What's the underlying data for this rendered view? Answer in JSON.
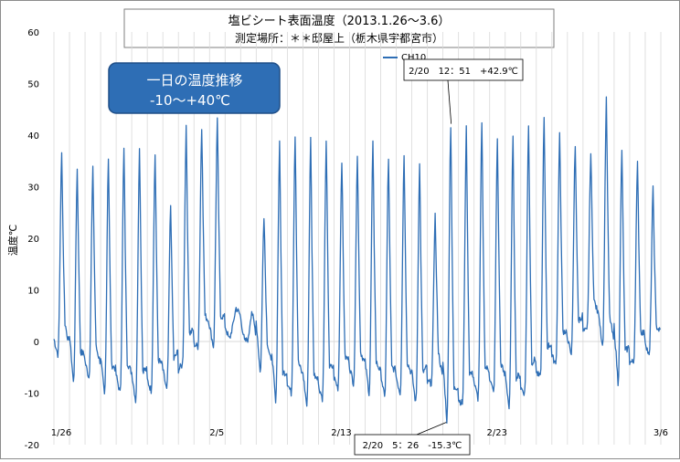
{
  "chart_data": {
    "type": "line",
    "title": "塩ビシート表面温度（2013.1.26～3.6）",
    "subtitle": "測定場所：＊＊邸屋上（栃木県宇都宮市）",
    "ylabel": "温度℃",
    "xlabel": "",
    "ylim": [
      -20,
      60
    ],
    "yticks": [
      "60",
      "50",
      "40",
      "30",
      "20",
      "10",
      "0",
      "-10",
      "-20"
    ],
    "xlim": [
      "2013-01-26",
      "2013-03-06"
    ],
    "xticks": [
      {
        "date": "2013-01-26",
        "label": "1/26"
      },
      {
        "date": "2013-02-05",
        "label": "2/5"
      },
      {
        "date": "2013-02-13",
        "label": "2/13"
      },
      {
        "date": "2013-02-23",
        "label": "2/23"
      },
      {
        "date": "2013-03-06",
        "label": "3/6"
      }
    ],
    "grid": "vertical",
    "legend_position": "top-center",
    "series": [
      {
        "name": "CH10",
        "color": "#2e6eb5",
        "daily": [
          {
            "date": "2013-01-26",
            "min": -2.5,
            "max": 37
          },
          {
            "date": "2013-01-27",
            "min": -8,
            "max": 34
          },
          {
            "date": "2013-01-28",
            "min": -7,
            "max": 34
          },
          {
            "date": "2013-01-29",
            "min": -10.5,
            "max": 36.5
          },
          {
            "date": "2013-01-30",
            "min": -10,
            "max": 38
          },
          {
            "date": "2013-01-31",
            "min": -11.5,
            "max": 38
          },
          {
            "date": "2013-02-01",
            "min": -9.5,
            "max": 37
          },
          {
            "date": "2013-02-02",
            "min": -9.5,
            "max": 27
          },
          {
            "date": "2013-02-03",
            "min": -4.5,
            "max": 42
          },
          {
            "date": "2013-02-04",
            "min": -1,
            "max": 42
          },
          {
            "date": "2013-02-05",
            "min": -1,
            "max": 43.5
          },
          {
            "date": "2013-02-06",
            "min": 0.5,
            "max": 3
          },
          {
            "date": "2013-02-07",
            "min": 0,
            "max": 0.5
          },
          {
            "date": "2013-02-08",
            "min": -6,
            "max": 25
          },
          {
            "date": "2013-02-09",
            "min": -12,
            "max": 39.5
          },
          {
            "date": "2013-02-10",
            "min": -10,
            "max": 41
          },
          {
            "date": "2013-02-11",
            "min": -12.5,
            "max": 40
          },
          {
            "date": "2013-02-12",
            "min": -11,
            "max": 39
          },
          {
            "date": "2013-02-13",
            "min": -9,
            "max": 36
          },
          {
            "date": "2013-02-14",
            "min": -8,
            "max": 37
          },
          {
            "date": "2013-02-15",
            "min": -10,
            "max": 39
          },
          {
            "date": "2013-02-16",
            "min": -11,
            "max": 36
          },
          {
            "date": "2013-02-17",
            "min": -10,
            "max": 37
          },
          {
            "date": "2013-02-18",
            "min": -12,
            "max": 35
          },
          {
            "date": "2013-02-19",
            "min": -8,
            "max": 25
          },
          {
            "date": "2013-02-20",
            "min": -15.3,
            "max": 42.9
          },
          {
            "date": "2013-02-21",
            "min": -12,
            "max": 42
          },
          {
            "date": "2013-02-22",
            "min": -11,
            "max": 43
          },
          {
            "date": "2013-02-23",
            "min": -10,
            "max": 40
          },
          {
            "date": "2013-02-24",
            "min": -13,
            "max": 40
          },
          {
            "date": "2013-02-25",
            "min": -10,
            "max": 43
          },
          {
            "date": "2013-02-26",
            "min": -7,
            "max": 44
          },
          {
            "date": "2013-02-27",
            "min": -4,
            "max": 41
          },
          {
            "date": "2013-02-28",
            "min": -2,
            "max": 38.5
          },
          {
            "date": "2013-03-01",
            "min": 2,
            "max": 37
          },
          {
            "date": "2013-03-02",
            "min": -1,
            "max": 47.5
          },
          {
            "date": "2013-03-03",
            "min": -8,
            "max": 38
          },
          {
            "date": "2013-03-04",
            "min": -4,
            "max": 35
          },
          {
            "date": "2013-03-05",
            "min": -3,
            "max": 30
          }
        ]
      }
    ],
    "annotations": [
      {
        "text": "2/20　12：51　+42.9℃",
        "date": "2013-02-20",
        "value": 42.9
      },
      {
        "text": "2/20　5：26　-15.3℃",
        "date": "2013-02-20",
        "value": -15.3
      }
    ],
    "callout": {
      "line1": "一日の温度推移",
      "line2": "-10～+40℃",
      "fill": "#2e6eb5"
    }
  }
}
